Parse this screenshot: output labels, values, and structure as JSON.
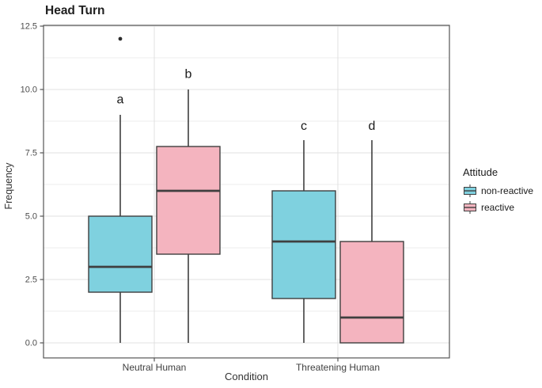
{
  "chart_data": {
    "type": "boxplot",
    "title": "Head Turn",
    "xlabel": "Condition",
    "ylabel": "Frequency",
    "categories": [
      "Neutral Human",
      "Threatening Human"
    ],
    "y_ticks": [
      {
        "value": 0.0,
        "label": "0.0"
      },
      {
        "value": 2.5,
        "label": "2.5"
      },
      {
        "value": 5.0,
        "label": "5.0"
      },
      {
        "value": 7.5,
        "label": "7.5"
      },
      {
        "value": 10.0,
        "label": "10.0"
      },
      {
        "value": 12.5,
        "label": "12.5"
      }
    ],
    "ylim": [
      -0.6,
      12.55
    ],
    "grid": {
      "major": true,
      "minor": true
    },
    "legend": {
      "title": "Attitude",
      "position": "right",
      "entries": [
        {
          "label": "non-reactive",
          "color": "#7FD1DF"
        },
        {
          "label": "reactive",
          "color": "#F4B4BF"
        }
      ]
    },
    "series": [
      {
        "name": "non-reactive",
        "color": "#7FD1DF",
        "boxes": [
          {
            "category": "Neutral Human",
            "letter": "a",
            "letter_y": 9.45,
            "min": 0,
            "q1": 2,
            "median": 3,
            "q3": 5,
            "max": 9,
            "outliers": [
              12
            ]
          },
          {
            "category": "Threatening Human",
            "letter": "c",
            "letter_y": 8.4,
            "min": 0,
            "q1": 1.75,
            "median": 4,
            "q3": 6,
            "max": 8,
            "outliers": []
          }
        ]
      },
      {
        "name": "reactive",
        "color": "#F4B4BF",
        "boxes": [
          {
            "category": "Neutral Human",
            "letter": "b",
            "letter_y": 10.45,
            "min": 0,
            "q1": 3.5,
            "median": 6,
            "q3": 7.75,
            "max": 10,
            "outliers": []
          },
          {
            "category": "Threatening Human",
            "letter": "d",
            "letter_y": 8.4,
            "min": 0,
            "q1": 0,
            "median": 1,
            "q3": 4,
            "max": 8,
            "outliers": []
          }
        ]
      }
    ],
    "style": {
      "stroke": "#3f3f3f",
      "panel_border": "#555555",
      "grid_major": "#e0e0e0",
      "grid_minor": "#eeeeee",
      "tick_label_color": "#4d4d4d"
    }
  }
}
